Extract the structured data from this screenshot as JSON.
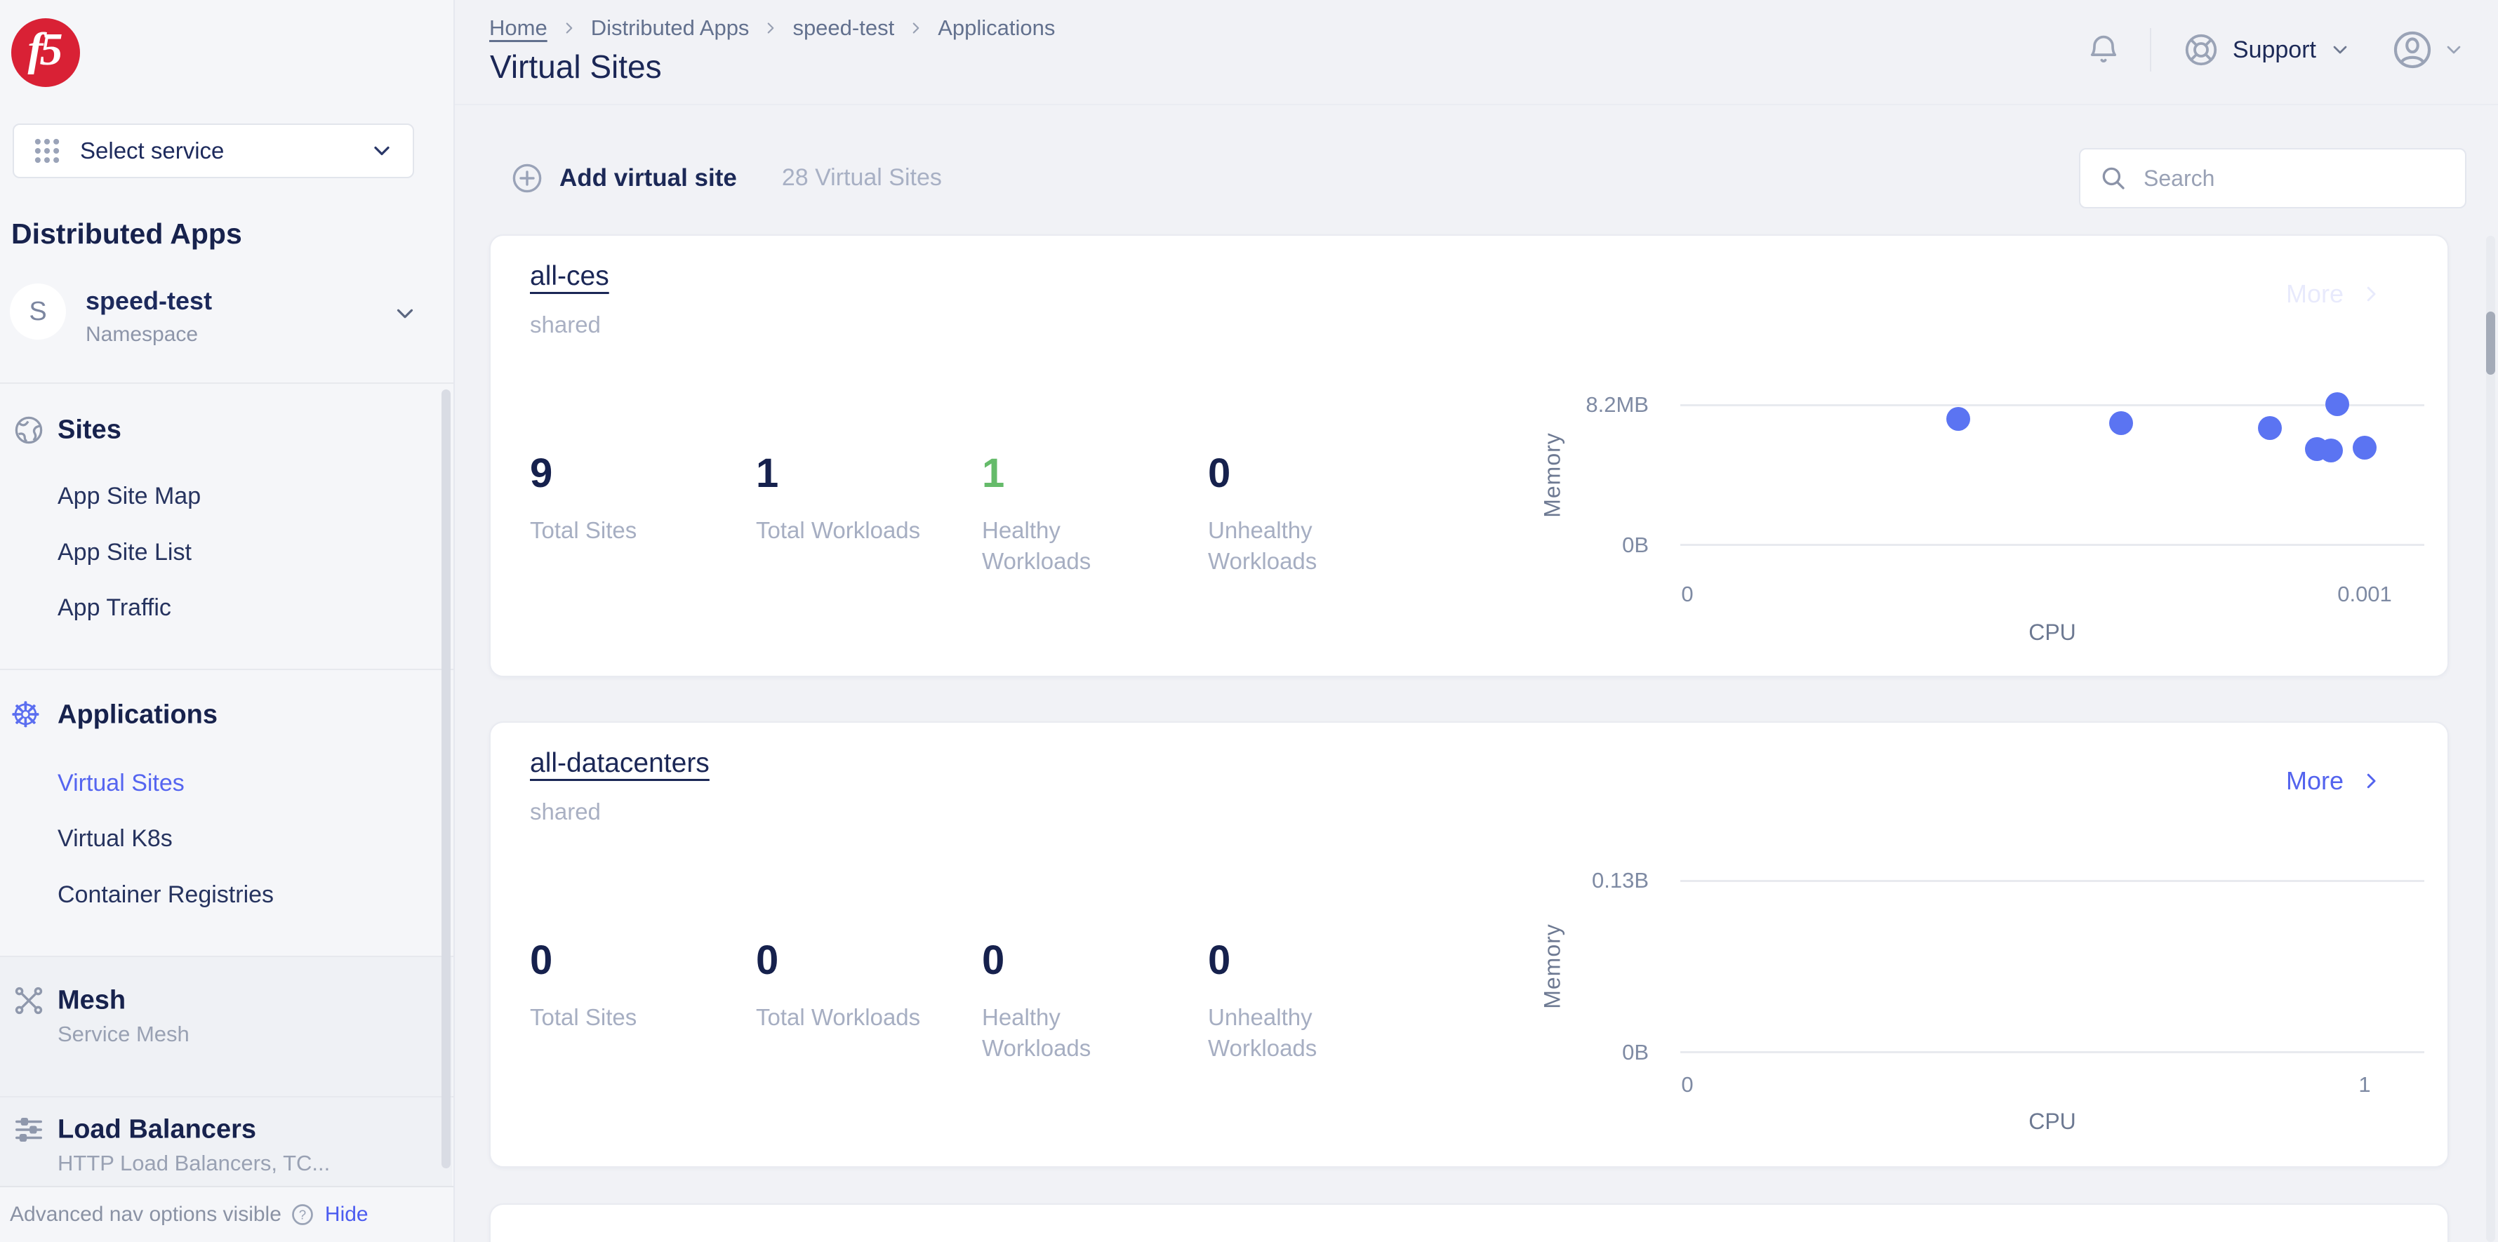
{
  "brand": {
    "name": "f5",
    "color": "#d92135"
  },
  "sidebar": {
    "select_service_label": "Select service",
    "heading": "Distributed Apps",
    "namespace": {
      "initial": "S",
      "name": "speed-test",
      "type_label": "Namespace"
    },
    "groups": [
      {
        "title": "Sites",
        "items": [
          "App Site Map",
          "App Site List",
          "App Traffic"
        ]
      },
      {
        "title": "Applications",
        "items": [
          "Virtual Sites",
          "Virtual K8s",
          "Container Registries"
        ],
        "active_item": "Virtual Sites"
      },
      {
        "title": "Mesh",
        "subtitle": "Service Mesh"
      },
      {
        "title": "Load Balancers",
        "subtitle": "HTTP Load Balancers, TC..."
      }
    ],
    "footer": {
      "message": "Advanced nav options visible",
      "action": "Hide"
    }
  },
  "header": {
    "breadcrumb": [
      "Home",
      "Distributed Apps",
      "speed-test",
      "Applications"
    ],
    "title": "Virtual Sites",
    "support_label": "Support"
  },
  "toolbar": {
    "add_label": "Add virtual site",
    "count_label": "28 Virtual Sites",
    "search_placeholder": "Search"
  },
  "cards": [
    {
      "title": "all-ces",
      "subtitle": "shared",
      "more_label": "More",
      "stats": [
        {
          "value": "9",
          "label": "Total Sites"
        },
        {
          "value": "1",
          "label": "Total Workloads"
        },
        {
          "value": "1",
          "label": "Healthy Workloads",
          "accent": "green"
        },
        {
          "value": "0",
          "label": "Unhealthy Workloads"
        }
      ]
    },
    {
      "title": "all-datacenters",
      "subtitle": "shared",
      "more_label": "More",
      "stats": [
        {
          "value": "0",
          "label": "Total Sites"
        },
        {
          "value": "0",
          "label": "Total Workloads"
        },
        {
          "value": "0",
          "label": "Healthy Workloads"
        },
        {
          "value": "0",
          "label": "Unhealthy Workloads"
        }
      ]
    }
  ],
  "chart_data": [
    {
      "card": "all-ces",
      "type": "scatter",
      "xlabel": "CPU",
      "ylabel": "Memory",
      "x_ticks": [
        "0",
        "0.001"
      ],
      "y_ticks": [
        "8.2MB",
        "0B"
      ],
      "x_range": [
        0,
        0.0011
      ],
      "y_range_mb": [
        0,
        8.2
      ],
      "grid": true,
      "points": [
        {
          "cpu": 0.0004,
          "memory_mb": 7.38
        },
        {
          "cpu": 0.00064,
          "memory_mb": 7.13
        },
        {
          "cpu": 0.00086,
          "memory_mb": 6.85
        },
        {
          "cpu": 0.00093,
          "memory_mb": 5.62
        },
        {
          "cpu": 0.00095,
          "memory_mb": 5.54
        },
        {
          "cpu": 0.00096,
          "memory_mb": 8.24
        },
        {
          "cpu": 0.001,
          "memory_mb": 5.7
        }
      ]
    },
    {
      "card": "all-datacenters",
      "type": "scatter",
      "xlabel": "CPU",
      "ylabel": "Memory",
      "x_ticks": [
        "0",
        "1"
      ],
      "y_ticks": [
        "0.13B",
        "0B"
      ],
      "x_range": [
        0,
        1
      ],
      "grid": true,
      "points": []
    }
  ],
  "colors": {
    "accent_blue": "#5363ee",
    "dot_blue": "#5b74f2",
    "healthy_green": "#65bb6a",
    "navy": "#1c2957",
    "brand_red": "#d92135"
  }
}
